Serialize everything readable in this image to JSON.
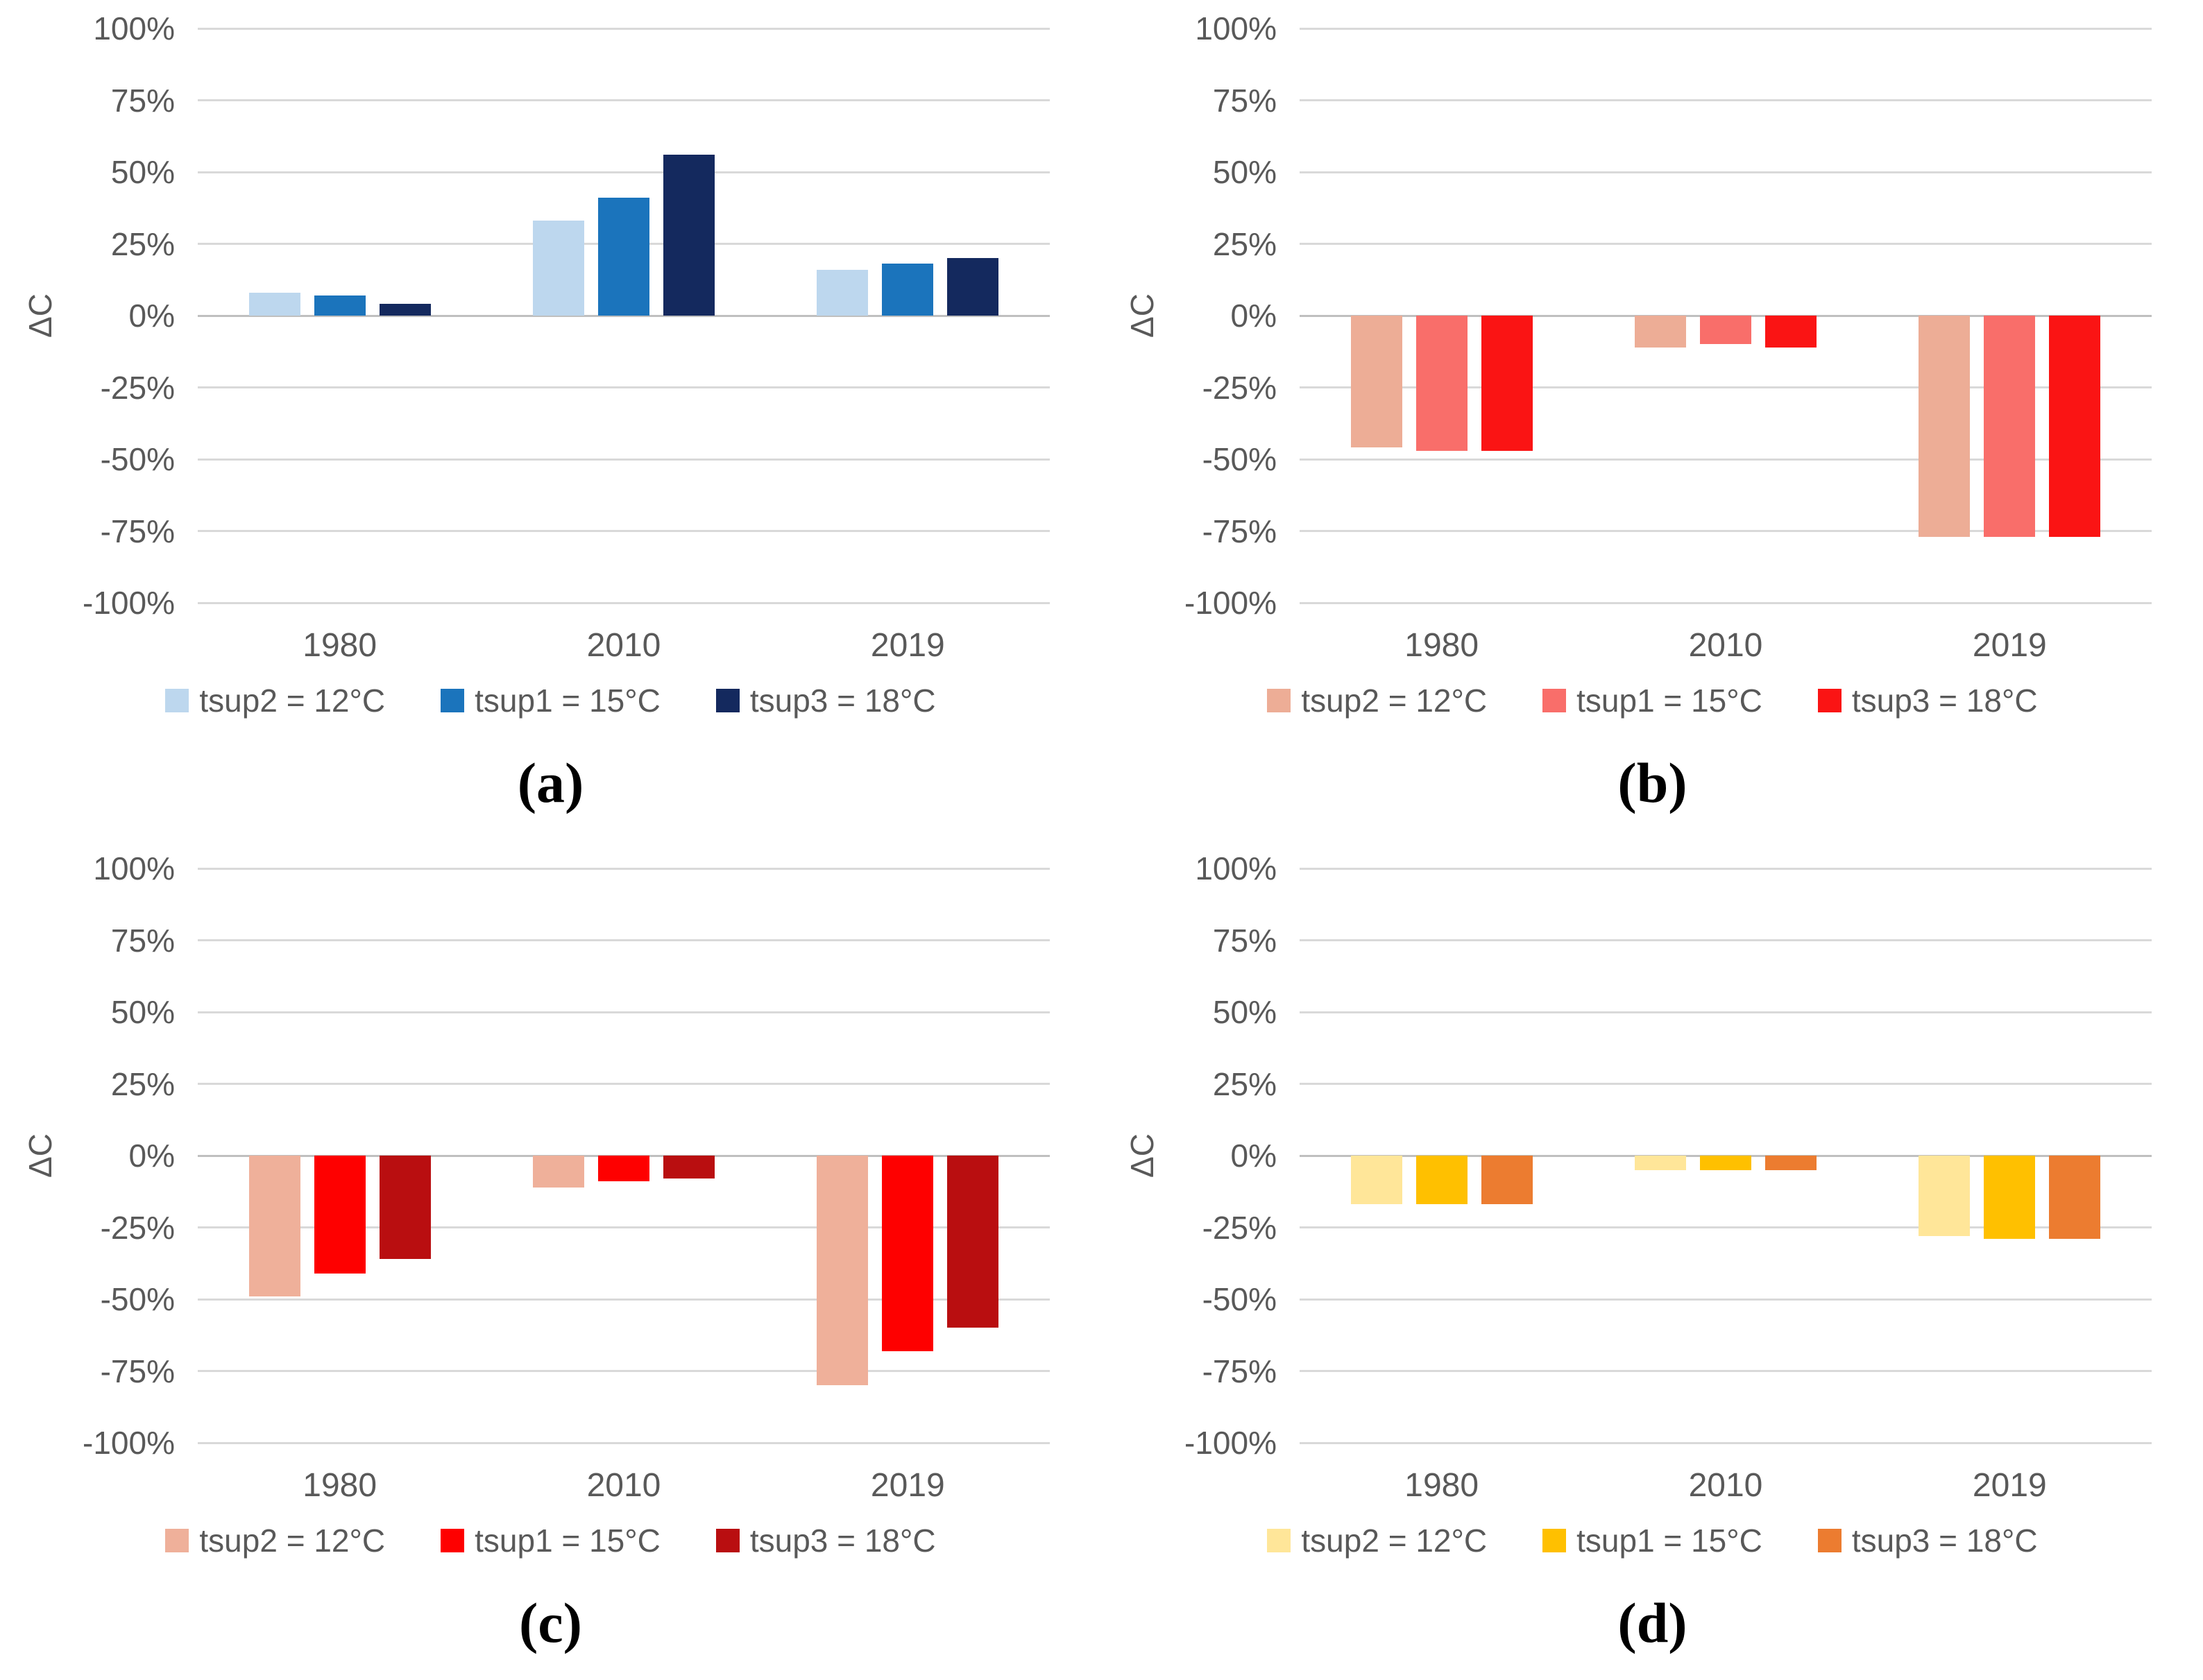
{
  "style": {
    "grid_color": "#D9D9D9",
    "zero_axis_color": "#BFBFBF",
    "text_color": "#595959",
    "background": "#FFFFFF"
  },
  "axis": {
    "ylabel": "ΔC",
    "yticks": [
      "100%",
      "75%",
      "50%",
      "25%",
      "0%",
      "-25%",
      "-50%",
      "-75%",
      "-100%"
    ],
    "categories": [
      "1980",
      "2010",
      "2019"
    ]
  },
  "chart_data": [
    {
      "id": "a",
      "panel_label": "(a)",
      "type": "bar",
      "ylabel": "ΔC",
      "unit": "%",
      "ylim": [
        -100,
        100
      ],
      "ytick_values": [
        100,
        75,
        50,
        25,
        0,
        -25,
        -50,
        -75,
        -100
      ],
      "grid": true,
      "legend_position": "bottom",
      "categories": [
        "1980",
        "2010",
        "2019"
      ],
      "series": [
        {
          "name": "tsup2 = 12°C",
          "color": "#BDD7EE",
          "values": [
            8,
            33,
            16
          ]
        },
        {
          "name": "tsup1 = 15°C",
          "color": "#1B74BC",
          "values": [
            7,
            41,
            18
          ]
        },
        {
          "name": "tsup3 = 18°C",
          "color": "#14295E",
          "values": [
            4,
            56,
            20
          ]
        }
      ]
    },
    {
      "id": "b",
      "panel_label": "(b)",
      "type": "bar",
      "ylabel": "ΔC",
      "unit": "%",
      "ylim": [
        -100,
        100
      ],
      "ytick_values": [
        100,
        75,
        50,
        25,
        0,
        -25,
        -50,
        -75,
        -100
      ],
      "grid": true,
      "legend_position": "bottom",
      "categories": [
        "1980",
        "2010",
        "2019"
      ],
      "series": [
        {
          "name": "tsup2 = 12°C",
          "color": "#EDAD96",
          "values": [
            -46,
            -11,
            -77
          ]
        },
        {
          "name": "tsup1 = 15°C",
          "color": "#F96E6A",
          "values": [
            -47,
            -10,
            -77
          ]
        },
        {
          "name": "tsup3 = 18°C",
          "color": "#FA1414",
          "values": [
            -47,
            -11,
            -77
          ]
        }
      ]
    },
    {
      "id": "c",
      "panel_label": "(c)",
      "type": "bar",
      "ylabel": "ΔC",
      "unit": "%",
      "ylim": [
        -100,
        100
      ],
      "ytick_values": [
        100,
        75,
        50,
        25,
        0,
        -25,
        -50,
        -75,
        -100
      ],
      "grid": true,
      "legend_position": "bottom",
      "categories": [
        "1980",
        "2010",
        "2019"
      ],
      "series": [
        {
          "name": "tsup2 = 12°C",
          "color": "#EFB09A",
          "values": [
            -49,
            -11,
            -80
          ]
        },
        {
          "name": "tsup1 = 15°C",
          "color": "#FE0000",
          "values": [
            -41,
            -9,
            -68
          ]
        },
        {
          "name": "tsup3 = 18°C",
          "color": "#B90E10",
          "values": [
            -36,
            -8,
            -60
          ]
        }
      ]
    },
    {
      "id": "d",
      "panel_label": "(d)",
      "type": "bar",
      "ylabel": "ΔC",
      "unit": "%",
      "ylim": [
        -100,
        100
      ],
      "ytick_values": [
        100,
        75,
        50,
        25,
        0,
        -25,
        -50,
        -75,
        -100
      ],
      "grid": true,
      "legend_position": "bottom",
      "categories": [
        "1980",
        "2010",
        "2019"
      ],
      "series": [
        {
          "name": "tsup2 = 12°C",
          "color": "#FFE699",
          "values": [
            -17,
            -5,
            -28
          ]
        },
        {
          "name": "tsup1 = 15°C",
          "color": "#FFC000",
          "values": [
            -17,
            -5,
            -29
          ]
        },
        {
          "name": "tsup3 = 18°C",
          "color": "#EC7C30",
          "values": [
            -17,
            -5,
            -29
          ]
        }
      ]
    }
  ]
}
